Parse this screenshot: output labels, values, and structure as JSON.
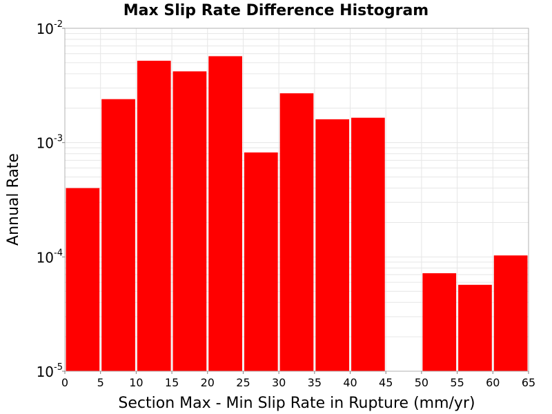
{
  "chart_data": {
    "type": "bar",
    "title": "Max Slip Rate Difference Histogram",
    "xlabel": "Section Max - Min Slip Rate in Rupture (mm/yr)",
    "ylabel": "Annual Rate",
    "yscale": "log",
    "xlim": [
      0,
      65
    ],
    "ylim": [
      1e-05,
      0.01
    ],
    "bin_width": 5,
    "x_ticks": [
      "0",
      "5",
      "10",
      "15",
      "20",
      "25",
      "30",
      "35",
      "40",
      "45",
      "50",
      "55",
      "60",
      "65"
    ],
    "y_ticks": [
      {
        "base": "10",
        "exp": "-5",
        "value": 1e-05
      },
      {
        "base": "10",
        "exp": "-4",
        "value": 0.0001
      },
      {
        "base": "10",
        "exp": "-3",
        "value": 0.001
      },
      {
        "base": "10",
        "exp": "-2",
        "value": 0.01
      }
    ],
    "bins": [
      {
        "x0": 0,
        "x1": 5,
        "value": 0.0004
      },
      {
        "x0": 5,
        "x1": 10,
        "value": 0.0024
      },
      {
        "x0": 10,
        "x1": 15,
        "value": 0.0052
      },
      {
        "x0": 15,
        "x1": 20,
        "value": 0.0042
      },
      {
        "x0": 20,
        "x1": 25,
        "value": 0.0057
      },
      {
        "x0": 25,
        "x1": 30,
        "value": 0.00082
      },
      {
        "x0": 30,
        "x1": 35,
        "value": 0.0027
      },
      {
        "x0": 35,
        "x1": 40,
        "value": 0.0016
      },
      {
        "x0": 40,
        "x1": 45,
        "value": 0.00165
      },
      {
        "x0": 50,
        "x1": 55,
        "value": 7.2e-05
      },
      {
        "x0": 55,
        "x1": 60,
        "value": 5.7e-05
      },
      {
        "x0": 60,
        "x1": 65,
        "value": 0.000103
      }
    ],
    "bar_color": "#ff0000",
    "grid": true,
    "grid_color": "#e6e6e6"
  }
}
